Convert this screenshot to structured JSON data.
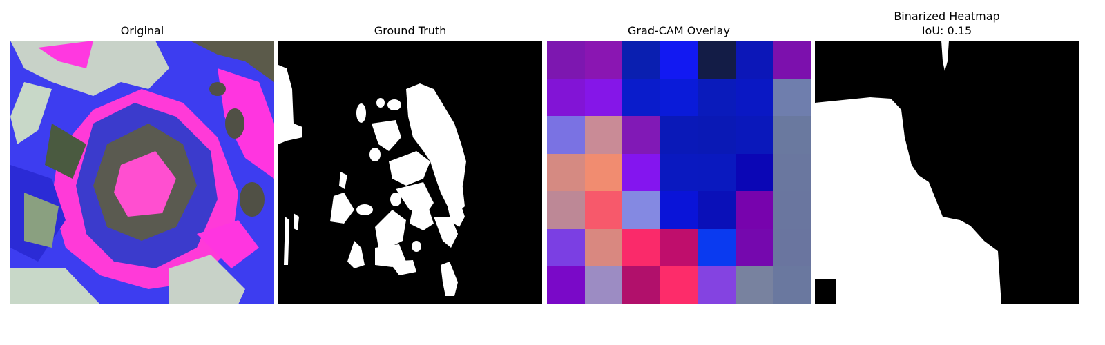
{
  "panels": {
    "original": {
      "title": "Original"
    },
    "ground_truth": {
      "title": "Ground Truth"
    },
    "gradcam": {
      "title": "Grad-CAM Overlay",
      "grid_colors": [
        [
          "#7d17b0",
          "#8a16b2",
          "#0a1fb0",
          "#1219f2",
          "#131c46",
          "#0c17b8",
          "#7c10ad"
        ],
        [
          "#8214d6",
          "#8516e8",
          "#0a1ccb",
          "#0a1bd9",
          "#0a1bbb",
          "#0a18c4",
          "#6f7ead"
        ],
        [
          "#7a72e3",
          "#c98b96",
          "#8119b6",
          "#0a19b8",
          "#0a19b5",
          "#0a18bb",
          "#6a799f"
        ],
        [
          "#d58a82",
          "#f18c70",
          "#8415ef",
          "#0a19c0",
          "#0a19bf",
          "#0b06b5",
          "#6a779f"
        ],
        [
          "#bd8896",
          "#f7596b",
          "#8489e2",
          "#0a14d8",
          "#0a10b8",
          "#7703ad",
          "#6a769f"
        ],
        [
          "#7b3fe3",
          "#d98880",
          "#fa2a6a",
          "#bf0e6c",
          "#0a3af0",
          "#7508ae",
          "#6a759f"
        ],
        [
          "#7a09c8",
          "#9c8cc3",
          "#b1106b",
          "#fd2c6a",
          "#8443e1",
          "#78829f",
          "#6a789f"
        ]
      ]
    },
    "binarized": {
      "title": "Binarized Heatmap",
      "subtitle": "IoU: 0.15"
    }
  }
}
